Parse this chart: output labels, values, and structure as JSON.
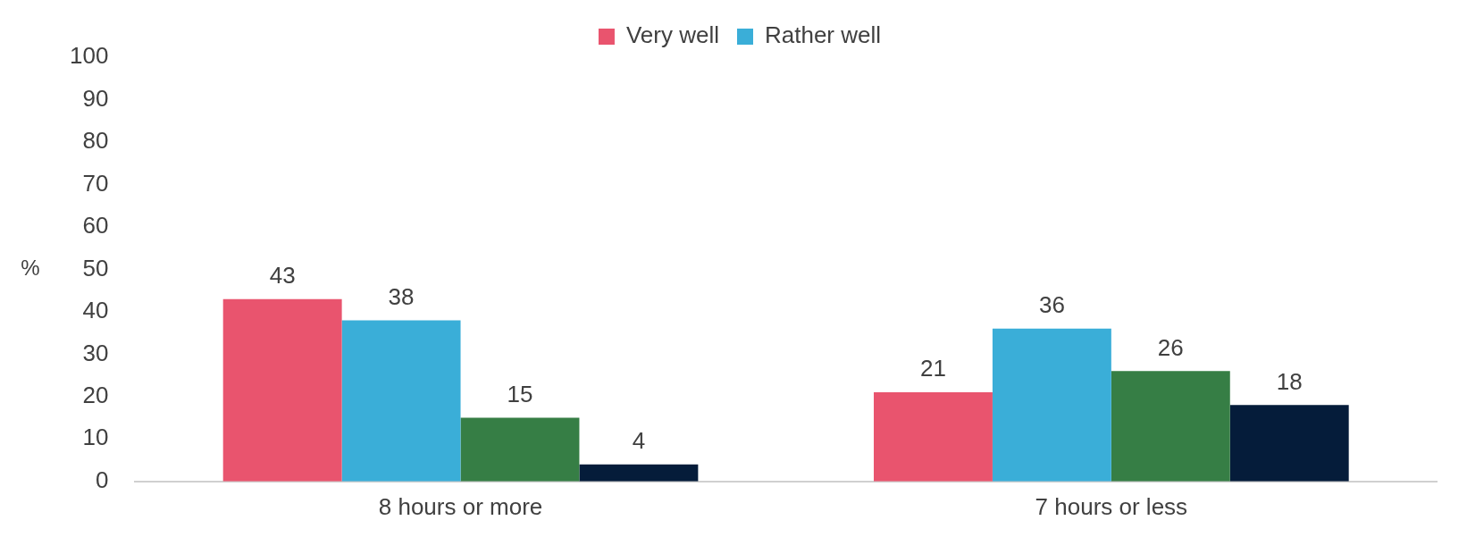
{
  "chart_data": {
    "type": "bar",
    "ylabel": "%",
    "categories": [
      "8 hours or more",
      "7 hours or less"
    ],
    "series": [
      {
        "name": "Very well",
        "color": "#e9546e",
        "values": [
          43,
          21
        ]
      },
      {
        "name": "Rather well",
        "color": "#3aaed8",
        "values": [
          38,
          36
        ]
      },
      {
        "color": "#367e45",
        "values": [
          15,
          26
        ]
      },
      {
        "color": "#051c3a",
        "values": [
          4,
          18
        ]
      }
    ],
    "ylim": [
      0,
      100
    ],
    "yticks": [
      0,
      10,
      20,
      30,
      40,
      50,
      60,
      70,
      80,
      90,
      100
    ],
    "grid": false,
    "legend": "top",
    "data_labels": true
  }
}
